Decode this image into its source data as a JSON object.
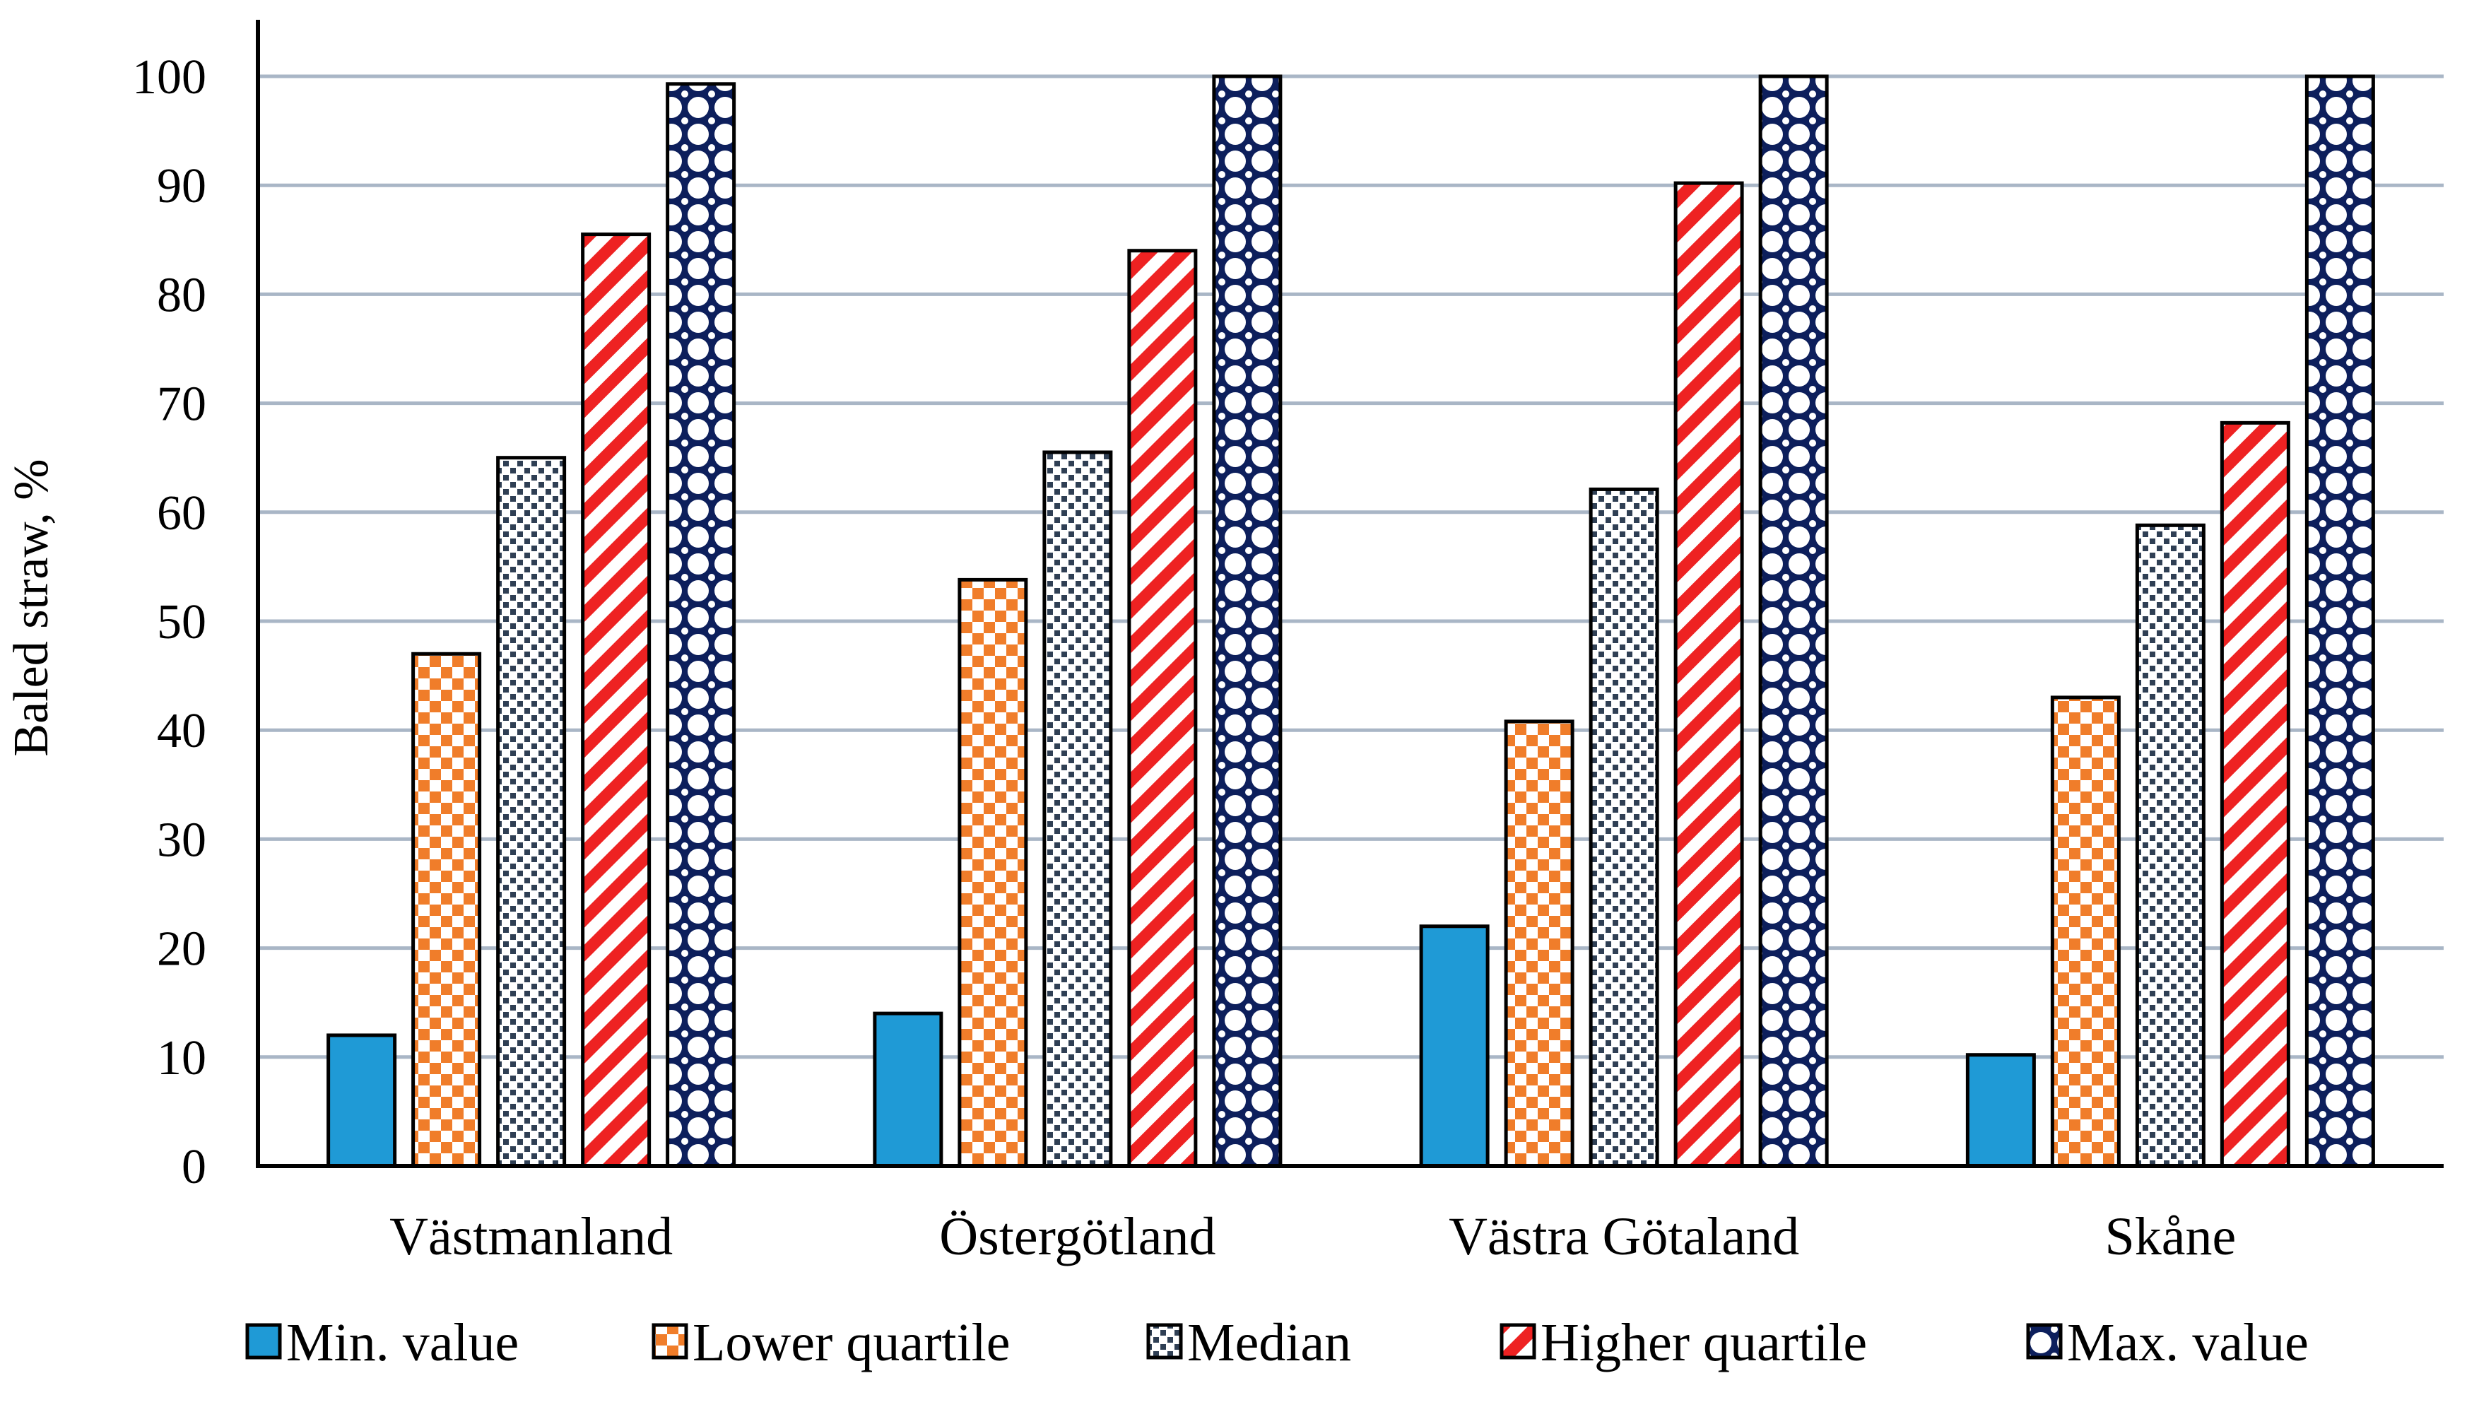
{
  "chart_data": {
    "type": "bar",
    "title": "",
    "xlabel": "",
    "ylabel": "Baled straw, %",
    "ylim": [
      0,
      100
    ],
    "yticks": [
      0,
      10,
      20,
      30,
      40,
      50,
      60,
      70,
      80,
      90,
      100
    ],
    "grid": true,
    "legend_position": "bottom",
    "categories": [
      "Västmanland",
      "Östergötland",
      "Västra Götaland",
      "Skåne"
    ],
    "series": [
      {
        "name": "Min. value",
        "values": [
          12,
          14,
          22,
          10.2
        ],
        "color": "#1f9ad6",
        "pattern": "solid"
      },
      {
        "name": "Lower quartile",
        "values": [
          47,
          53.8,
          40.8,
          43
        ],
        "color": "#f07d2a",
        "pattern": "checker"
      },
      {
        "name": "Median",
        "values": [
          65,
          65.5,
          62.1,
          58.8
        ],
        "color": "#2f3f54",
        "pattern": "dots"
      },
      {
        "name": "Higher quartile",
        "values": [
          85.5,
          84,
          90.2,
          68.2
        ],
        "color": "#ee2222",
        "pattern": "diagonal"
      },
      {
        "name": "Max. value",
        "values": [
          99.3,
          100,
          100,
          100
        ],
        "color": "#0d1f5c",
        "pattern": "diamonds"
      }
    ]
  }
}
